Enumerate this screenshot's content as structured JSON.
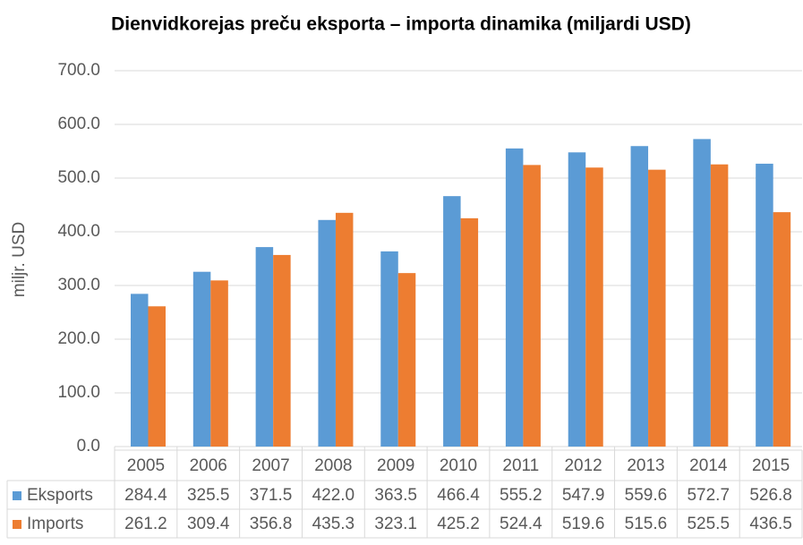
{
  "chart_data": {
    "type": "bar",
    "title": "Dienvidkorejas preču eksporta – importa dinamika (miljardi USD)",
    "y_label": "miljr. USD",
    "categories": [
      "2005",
      "2006",
      "2007",
      "2008",
      "2009",
      "2010",
      "2011",
      "2012",
      "2013",
      "2014",
      "2015"
    ],
    "series": [
      {
        "name": "Eksports",
        "color": "#5b9bd5",
        "values": [
          284.4,
          325.5,
          371.5,
          422.0,
          363.5,
          466.4,
          555.2,
          547.9,
          559.6,
          572.7,
          526.8
        ],
        "value_labels": [
          "284.4",
          "325.5",
          "371.5",
          "422.0",
          "363.5",
          "466.4",
          "555.2",
          "547.9",
          "559.6",
          "572.7",
          "526.8"
        ]
      },
      {
        "name": "Imports",
        "color": "#ed7d31",
        "values": [
          261.2,
          309.4,
          356.8,
          435.3,
          323.1,
          425.2,
          524.4,
          519.6,
          515.6,
          525.5,
          436.5
        ],
        "value_labels": [
          "261.2",
          "309.4",
          "356.8",
          "435.3",
          "323.1",
          "425.2",
          "524.4",
          "519.6",
          "515.6",
          "525.5",
          "436.5"
        ]
      }
    ],
    "ylim": [
      0,
      700
    ],
    "yticks": [
      {
        "value": 0,
        "label": "0.0"
      },
      {
        "value": 100,
        "label": "100.0"
      },
      {
        "value": 200,
        "label": "200.0"
      },
      {
        "value": 300,
        "label": "300.0"
      },
      {
        "value": 400,
        "label": "400.0"
      },
      {
        "value": 500,
        "label": "500.0"
      },
      {
        "value": 600,
        "label": "600.0"
      },
      {
        "value": 700,
        "label": "700.0"
      }
    ],
    "grid": true,
    "data_table": true
  }
}
